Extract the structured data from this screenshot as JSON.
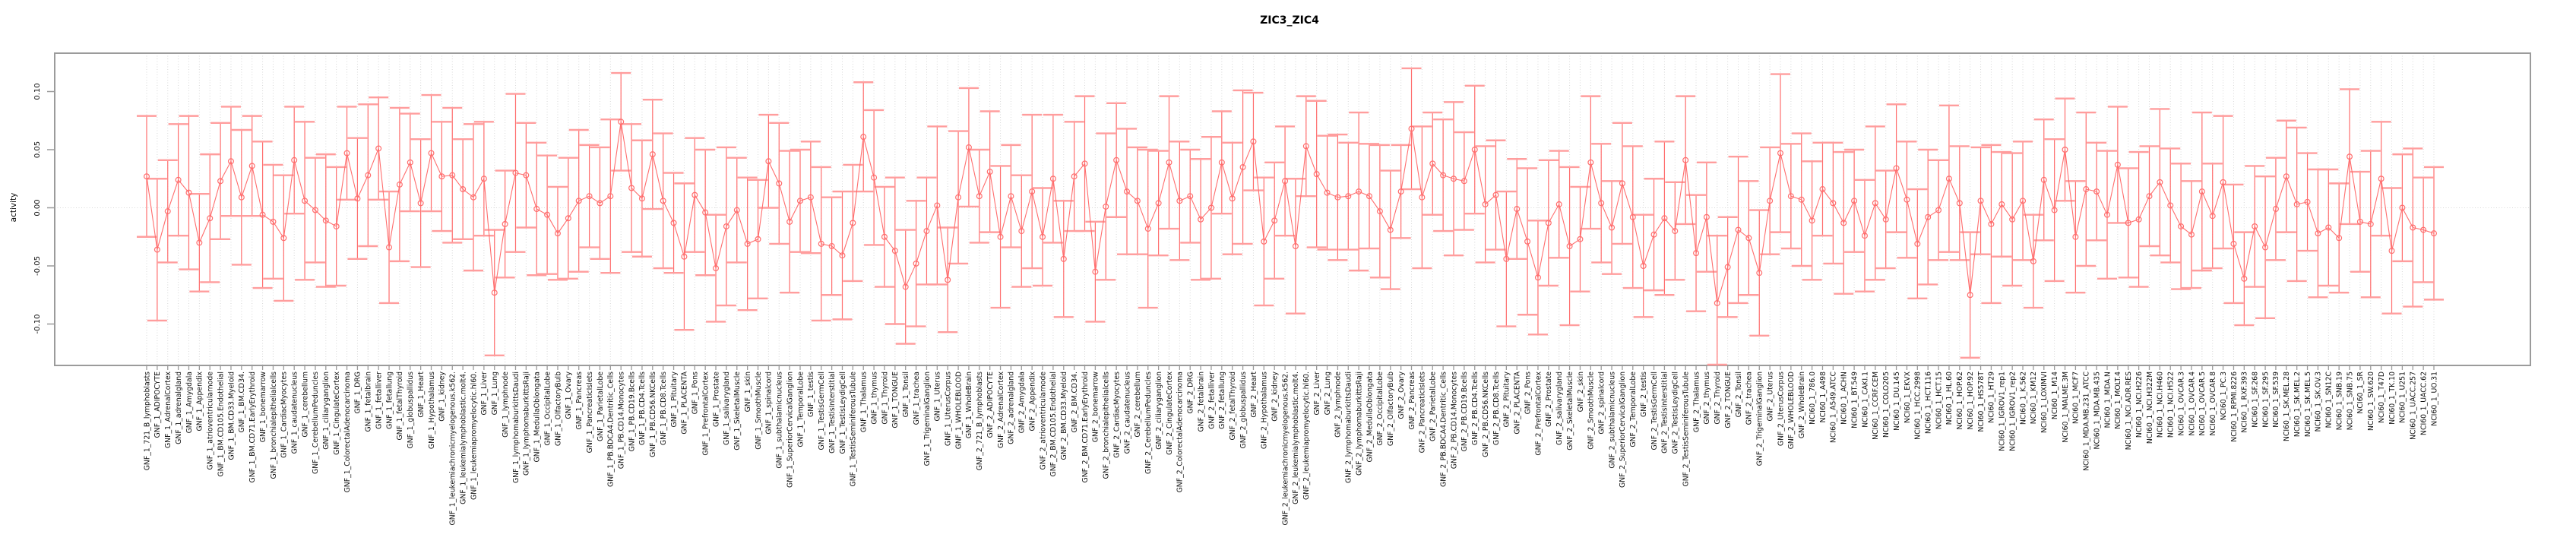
{
  "title": "ZIC3_ZIC4",
  "y_axis": {
    "label": "activity",
    "tick_labels": [
      "0.10",
      "0.05",
      "0.00",
      "-0.05",
      "-0.10"
    ],
    "tick_values": [
      0.1,
      0.05,
      0.0,
      -0.05,
      -0.1
    ]
  },
  "colors": {
    "series": "#ff6e6e",
    "error_cap": "#ff9d9d",
    "grid": "#d8d8d8",
    "axis_box": "#9b9b9b",
    "text": "#111111"
  },
  "chart_data": {
    "type": "line",
    "title": "ZIC3_ZIC4",
    "xlabel": "",
    "ylabel": "activity",
    "ylim": [
      -0.136,
      0.133
    ],
    "legend": "none",
    "grid": "dotted vertical line per category; dotted horizontal line at 0",
    "marker": "open-circle",
    "error_bars": true,
    "categories": [
      "GNF_1_721_B_lymphoblasts",
      "GNF_1_ADIPOCYTE",
      "GNF_1_AdrenalCortex",
      "GNF_1_adrenalgland",
      "GNF_1_Amygdala",
      "GNF_1_Appendix",
      "GNF_1_atrioventricularnode",
      "GNF_1_BM.CD105.Endothelial",
      "GNF_1_BM.CD33.Myeloid",
      "GNF_1_BM.CD34.",
      "GNF_1_BM.CD71.EarlyErythroid",
      "GNF_1_bonemarrow",
      "GNF_1_bronchialepithelialcells",
      "GNF_1_CardiacMyocytes",
      "GNF_1_caudatenucleus",
      "GNF_1_cerebellum",
      "GNF_1_CerebellumPeduncles",
      "GNF_1_ciliaryganglion",
      "GNF_1_CingulateCortex",
      "GNF_1_ColorectalAdenocarcinoma",
      "GNF_1_DRG",
      "GNF_1_fetalbrain",
      "GNF_1_fetalliver",
      "GNF_1_fetallung",
      "GNF_1_fetalThyroid",
      "GNF_1_globuspallidus",
      "GNF_1_Heart",
      "GNF_1_Hypothalamus",
      "GNF_1_kidney",
      "GNF_1_leukemiachronicmyelogenous.k562.",
      "GNF_1_leukemialymphoblastic.molt4.",
      "GNF_1_leukemiapromyelocytic.hl60.",
      "GNF_1_Liver",
      "GNF_1_Lung",
      "GNF_1_lymphnode",
      "GNF_1_lymphomaburkittsDaudi",
      "GNF_1_lymphomaburkittsRaji",
      "GNF_1_MedullaOblongata",
      "GNF_1_OccipitalLobe",
      "GNF_1_OlfactoryBulb",
      "GNF_1_Ovary",
      "GNF_1_Pancreas",
      "GNF_1_PancreaticIslets",
      "GNF_1_ParietalLobe",
      "GNF_1_PB.BDCA4.Dentritic_Cells",
      "GNF_1_PB.CD14.Monocytes",
      "GNF_1_PB.CD19.Bcells",
      "GNF_1_PB.CD4.Tcells",
      "GNF_1_PB.CD56.NKCells",
      "GNF_1_PB.CD8.Tcells",
      "GNF_1_Pituitary",
      "GNF_1_PLACENTA",
      "GNF_1_Pons",
      "GNF_1_PrefrontalCortex",
      "GNF_1_Prostate",
      "GNF_1_salivarygland",
      "GNF_1_SkeletalMuscle",
      "GNF_1_skin",
      "GNF_1_SmoothMuscle",
      "GNF_1_spinalcord",
      "GNF_1_subthalamicnucleus",
      "GNF_1_SuperiorCervicalGanglion",
      "GNF_1_TemporalLobe",
      "GNF_1_testis",
      "GNF_1_TestisGermCell",
      "GNF_1_TestisInterstitial",
      "GNF_1_TestisLeydigCell",
      "GNF_1_TestisSeminiferousTubule",
      "GNF_1_Thalamus",
      "GNF_1_thymus",
      "GNF_1_Thyroid",
      "GNF_1_TONGUE",
      "GNF_1_Tonsil",
      "GNF_1_trachea",
      "GNF_1_TrigeminalGanglion",
      "GNF_1_Uterus",
      "GNF_1_UterusCorpus",
      "GNF_1_WHOLEBLOOD",
      "GNF_1_WholeBrain",
      "GNF_2_721_B_lymphoblasts",
      "GNF_2_ADIPOCYTE",
      "GNF_2_AdrenalCortex",
      "GNF_2_adrenalgland",
      "GNF_2_Amygdala",
      "GNF_2_Appendix",
      "GNF_2_atrioventricularnode",
      "GNF_2_BM.CD105.Endothelial",
      "GNF_2_BM.CD33.Myeloid",
      "GNF_2_BM.CD34.",
      "GNF_2_BM.CD71.EarlyErythroid",
      "GNF_2_bonemarrow",
      "GNF_2_bronchialepithelialcells",
      "GNF_2_CardiacMyocytes",
      "GNF_2_caudatenucleus",
      "GNF_2_cerebellum",
      "GNF_2_CerebellumPeduncles",
      "GNF_2_ciliaryganglion",
      "GNF_2_CingulateCortex",
      "GNF_2_ColorectalAdenocarcinoma",
      "GNF_2_DRG",
      "GNF_2_fetalbrain",
      "GNF_2_fetalliver",
      "GNF_2_fetallung",
      "GNF_2_fetalThyroid",
      "GNF_2_globuspallidus",
      "GNF_2_Heart",
      "GNF_2_Hypothalamus",
      "GNF_2_kidney",
      "GNF_2_leukemiachronicmyelogenous.k562.",
      "GNF_2_leukemialymphoblastic.molt4.",
      "GNF_2_leukemiapromyelocytic.hl60.",
      "GNF_2_Liver",
      "GNF_2_Lung",
      "GNF_2_lymphnode",
      "GNF_2_lymphomaburkittsDaudi",
      "GNF_2_lymphomaburkittsRaji",
      "GNF_2_MedullaOblongata",
      "GNF_2_OccipitalLobe",
      "GNF_2_OlfactoryBulb",
      "GNF_2_Ovary",
      "GNF_2_Pancreas",
      "GNF_2_PancreaticIslets",
      "GNF_2_ParietalLobe",
      "GNF_2_PB.BDCA4.Dentritic_Cells",
      "GNF_2_PB.CD14.Monocytes",
      "GNF_2_PB.CD19.Bcells",
      "GNF_2_PB.CD4.Tcells",
      "GNF_2_PB.CD56.NKCells",
      "GNF_2_PB.CD8.Tcells",
      "GNF_2_Pituitary",
      "GNF_2_PLACENTA",
      "GNF_2_Pons",
      "GNF_2_PrefrontalCortex",
      "GNF_2_Prostate",
      "GNF_2_salivarygland",
      "GNF_2_SkeletalMuscle",
      "GNF_2_skin",
      "GNF_2_SmoothMuscle",
      "GNF_2_spinalcord",
      "GNF_2_subthalamicnucleus",
      "GNF_2_SuperiorCervicalGanglion",
      "GNF_2_TemporalLobe",
      "GNF_2_testis",
      "GNF_2_TestisGermCell",
      "GNF_2_TestisInterstitial",
      "GNF_2_TestisLeydigCell",
      "GNF_2_TestisSeminiferousTubule",
      "GNF_2_Thalamus",
      "GNF_2_thymus",
      "GNF_2_Thyroid",
      "GNF_2_TONGUE",
      "GNF_2_Tonsil",
      "GNF_2_trachea",
      "GNF_2_TrigeminalGanglion",
      "GNF_2_Uterus",
      "GNF_2_UterusCorpus",
      "GNF_2_WHOLEBLOOD",
      "GNF_2_WholeBrain",
      "NCI60_1_786.0",
      "NCI60_1_A498",
      "NCI60_1_A549.ATCC",
      "NCI60_1_ACHN",
      "NCI60_1_BT.549",
      "NCI60_1_CAKI.1",
      "NCI60_1_CCRF.CEM",
      "NCI60_1_COLO205",
      "NCI60_1_DU.145",
      "NCI60_1_EKVX",
      "NCI60_1_HCC.2998",
      "NCI60_1_HCT.116",
      "NCI60_1_HCT.15",
      "NCI60_1_HL.60",
      "NCI60_1_HOP.62",
      "NCI60_1_HOP.92",
      "NCI60_1_HS578T",
      "NCI60_1_HT29",
      "NCI60_1_IGROV1_rep1",
      "NCI60_1_IGROV1_rep2",
      "NCI60_1_K.562",
      "NCI60_1_KM12",
      "NCI60_1_LOXIMVI",
      "NCI60_1_M14",
      "NCI60_1_MALME.3M",
      "NCI60_1_MCF7",
      "NCI60_1_MDA.MB.231_ATCC",
      "NCI60_1_MDA.MB.435",
      "NCI60_1_MDA.N",
      "NCI60_1_MOLT.4",
      "NCI60_1_NCI.ADR.RES",
      "NCI60_1_NCI.H226",
      "NCI60_1_NCI.H322M",
      "NCI60_1_NCI.H460",
      "NCI60_1_NCI.H522",
      "NCI60_1_OVCAR.3",
      "NCI60_1_OVCAR.4",
      "NCI60_1_OVCAR.5",
      "NCI60_1_OVCAR.8",
      "NCI60_1_PC.3",
      "NCI60_1_RPMI.8226",
      "NCI60_1_RXF.393",
      "NCI60_1_SF.268",
      "NCI60_1_SF.295",
      "NCI60_1_SF.539",
      "NCI60_1_SK.MEL.28",
      "NCI60_1_SK.MEL.2",
      "NCI60_1_SK.MEL.5",
      "NCI60_1_SK.OV.3",
      "NCI60_1_SN12C",
      "NCI60_1_SNB.19",
      "NCI60_1_SNB.75",
      "NCI60_1_SR",
      "NCI60_1_SW.620",
      "NCI60_1_T47D",
      "NCI60_1_TK.10",
      "NCI60_1_U251",
      "NCI60_1_UACC.257",
      "NCI60_1_UACC.62",
      "NCI60_1_UO.31"
    ],
    "values": [
      0.027,
      -0.036,
      -0.003,
      0.024,
      0.013,
      -0.03,
      -0.009,
      0.023,
      0.04,
      0.009,
      0.036,
      -0.006,
      -0.012,
      -0.026,
      0.041,
      0.006,
      -0.002,
      -0.011,
      -0.016,
      0.047,
      0.008,
      0.028,
      0.051,
      -0.034,
      0.02,
      0.039,
      0.004,
      0.047,
      0.027,
      0.028,
      0.016,
      0.009,
      0.025,
      -0.073,
      -0.014,
      0.03,
      0.028,
      -0.001,
      -0.006,
      -0.022,
      -0.009,
      0.006,
      0.01,
      0.004,
      0.01,
      0.074,
      0.017,
      0.008,
      0.046,
      0.006,
      -0.013,
      -0.042,
      0.011,
      -0.004,
      -0.052,
      -0.016,
      -0.002,
      -0.031,
      -0.027,
      0.04,
      0.021,
      -0.012,
      0.006,
      0.009,
      -0.031,
      -0.033,
      -0.041,
      -0.013,
      0.061,
      0.026,
      -0.025,
      -0.037,
      -0.068,
      -0.048,
      -0.02,
      0.002,
      -0.062,
      0.009,
      0.052,
      0.01,
      0.031,
      -0.025,
      0.01,
      -0.02,
      0.014,
      -0.025,
      0.025,
      -0.044,
      0.027,
      0.038,
      -0.055,
      0.001,
      0.041,
      0.014,
      0.006,
      -0.018,
      0.004,
      0.039,
      0.006,
      0.01,
      -0.01,
      0.0,
      0.039,
      0.008,
      0.035,
      0.057,
      -0.029,
      -0.011,
      0.023,
      -0.033,
      0.053,
      0.029,
      0.013,
      0.009,
      0.01,
      0.014,
      0.01,
      -0.003,
      -0.019,
      0.014,
      0.068,
      0.009,
      0.038,
      0.028,
      0.025,
      0.023,
      0.05,
      0.003,
      0.011,
      -0.044,
      -0.001,
      -0.029,
      -0.06,
      -0.013,
      0.003,
      -0.033,
      -0.027,
      0.039,
      0.004,
      -0.017,
      0.021,
      -0.008,
      -0.05,
      -0.023,
      -0.009,
      -0.02,
      0.041,
      -0.039,
      -0.008,
      -0.082,
      -0.051,
      -0.019,
      -0.026,
      -0.056,
      0.006,
      0.047,
      0.01,
      0.007,
      -0.011,
      0.016,
      0.004,
      -0.013,
      0.006,
      -0.024,
      0.004,
      -0.01,
      0.034,
      0.007,
      -0.031,
      -0.008,
      -0.002,
      0.025,
      0.004,
      -0.075,
      0.006,
      -0.014,
      0.003,
      -0.01,
      0.006,
      -0.046,
      0.024,
      -0.002,
      0.05,
      -0.025,
      0.016,
      0.014,
      -0.006,
      0.037,
      -0.013,
      -0.01,
      0.01,
      0.022,
      0.002,
      -0.016,
      -0.023,
      0.014,
      -0.007,
      0.022,
      -0.031,
      -0.061,
      -0.016,
      -0.034,
      -0.001,
      0.027,
      0.003,
      0.005,
      -0.022,
      -0.017,
      -0.026,
      0.044,
      -0.012,
      -0.014,
      0.025,
      -0.037,
      0.0,
      -0.017,
      -0.019,
      -0.022
    ],
    "errors": [
      0.052,
      0.061,
      0.044,
      0.048,
      0.066,
      0.042,
      0.055,
      0.05,
      0.047,
      0.058,
      0.043,
      0.063,
      0.049,
      0.054,
      0.046,
      0.068,
      0.045,
      0.057,
      0.051,
      0.04,
      0.052,
      0.061,
      0.044,
      0.048,
      0.066,
      0.042,
      0.055,
      0.05,
      0.047,
      0.058,
      0.043,
      0.063,
      0.049,
      0.054,
      0.046,
      0.068,
      0.045,
      0.057,
      0.051,
      0.04,
      0.052,
      0.061,
      0.044,
      0.048,
      0.066,
      0.042,
      0.055,
      0.05,
      0.047,
      0.058,
      0.043,
      0.063,
      0.049,
      0.054,
      0.046,
      0.068,
      0.045,
      0.057,
      0.051,
      0.04,
      0.052,
      0.061,
      0.044,
      0.048,
      0.066,
      0.042,
      0.055,
      0.05,
      0.047,
      0.058,
      0.043,
      0.063,
      0.049,
      0.054,
      0.046,
      0.068,
      0.045,
      0.057,
      0.051,
      0.04,
      0.052,
      0.061,
      0.044,
      0.048,
      0.066,
      0.042,
      0.055,
      0.05,
      0.047,
      0.058,
      0.043,
      0.063,
      0.049,
      0.054,
      0.046,
      0.068,
      0.045,
      0.057,
      0.051,
      0.04,
      0.052,
      0.061,
      0.044,
      0.048,
      0.066,
      0.042,
      0.055,
      0.05,
      0.047,
      0.058,
      0.043,
      0.063,
      0.049,
      0.054,
      0.046,
      0.068,
      0.045,
      0.057,
      0.051,
      0.04,
      0.052,
      0.061,
      0.044,
      0.048,
      0.066,
      0.042,
      0.055,
      0.05,
      0.047,
      0.058,
      0.043,
      0.063,
      0.049,
      0.054,
      0.046,
      0.068,
      0.045,
      0.057,
      0.051,
      0.04,
      0.052,
      0.061,
      0.044,
      0.048,
      0.066,
      0.042,
      0.055,
      0.05,
      0.047,
      0.058,
      0.043,
      0.063,
      0.049,
      0.054,
      0.046,
      0.068,
      0.045,
      0.057,
      0.051,
      0.04,
      0.052,
      0.061,
      0.044,
      0.048,
      0.066,
      0.042,
      0.055,
      0.05,
      0.047,
      0.058,
      0.043,
      0.063,
      0.049,
      0.054,
      0.046,
      0.068,
      0.045,
      0.057,
      0.051,
      0.04,
      0.052,
      0.061,
      0.044,
      0.048,
      0.066,
      0.042,
      0.055,
      0.05,
      0.047,
      0.058,
      0.043,
      0.063,
      0.049,
      0.054,
      0.046,
      0.068,
      0.045,
      0.057,
      0.051,
      0.04,
      0.052,
      0.061,
      0.044,
      0.048,
      0.066,
      0.042,
      0.055,
      0.05,
      0.047,
      0.058,
      0.043,
      0.063,
      0.049,
      0.054,
      0.046,
      0.068,
      0.045,
      0.057
    ]
  }
}
